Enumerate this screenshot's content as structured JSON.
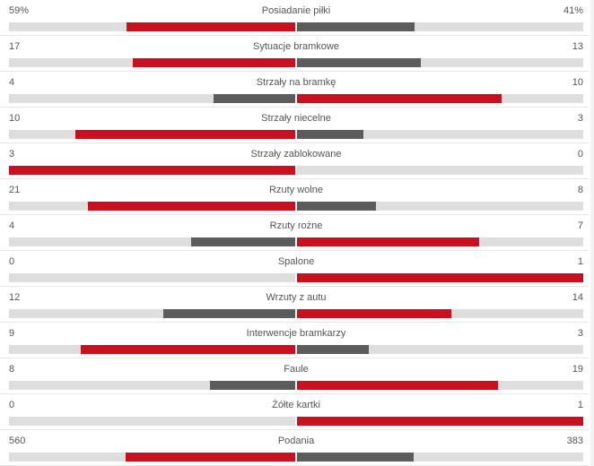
{
  "colors": {
    "winner": "#c8101e",
    "loser": "#5c5c5c",
    "track": "#dedede"
  },
  "stats": [
    {
      "label": "Posiadanie piłki",
      "home": "59%",
      "away": "41%",
      "home_value": 59,
      "away_value": 41
    },
    {
      "label": "Sytuacje bramkowe",
      "home": "17",
      "away": "13",
      "home_value": 17,
      "away_value": 13
    },
    {
      "label": "Strzały na bramkę",
      "home": "4",
      "away": "10",
      "home_value": 4,
      "away_value": 10
    },
    {
      "label": "Strzały niecelne",
      "home": "10",
      "away": "3",
      "home_value": 10,
      "away_value": 3
    },
    {
      "label": "Strzały zablokowane",
      "home": "3",
      "away": "0",
      "home_value": 3,
      "away_value": 0
    },
    {
      "label": "Rzuty wolne",
      "home": "21",
      "away": "8",
      "home_value": 21,
      "away_value": 8
    },
    {
      "label": "Rzuty rożne",
      "home": "4",
      "away": "7",
      "home_value": 4,
      "away_value": 7
    },
    {
      "label": "Spalone",
      "home": "0",
      "away": "1",
      "home_value": 0,
      "away_value": 1
    },
    {
      "label": "Wrzuty z autu",
      "home": "12",
      "away": "14",
      "home_value": 12,
      "away_value": 14
    },
    {
      "label": "Interwencje bramkarzy",
      "home": "9",
      "away": "3",
      "home_value": 9,
      "away_value": 3
    },
    {
      "label": "Faule",
      "home": "8",
      "away": "19",
      "home_value": 8,
      "away_value": 19
    },
    {
      "label": "Żółte kartki",
      "home": "0",
      "away": "1",
      "home_value": 0,
      "away_value": 1
    },
    {
      "label": "Podania",
      "home": "560",
      "away": "383",
      "home_value": 560,
      "away_value": 383
    }
  ]
}
